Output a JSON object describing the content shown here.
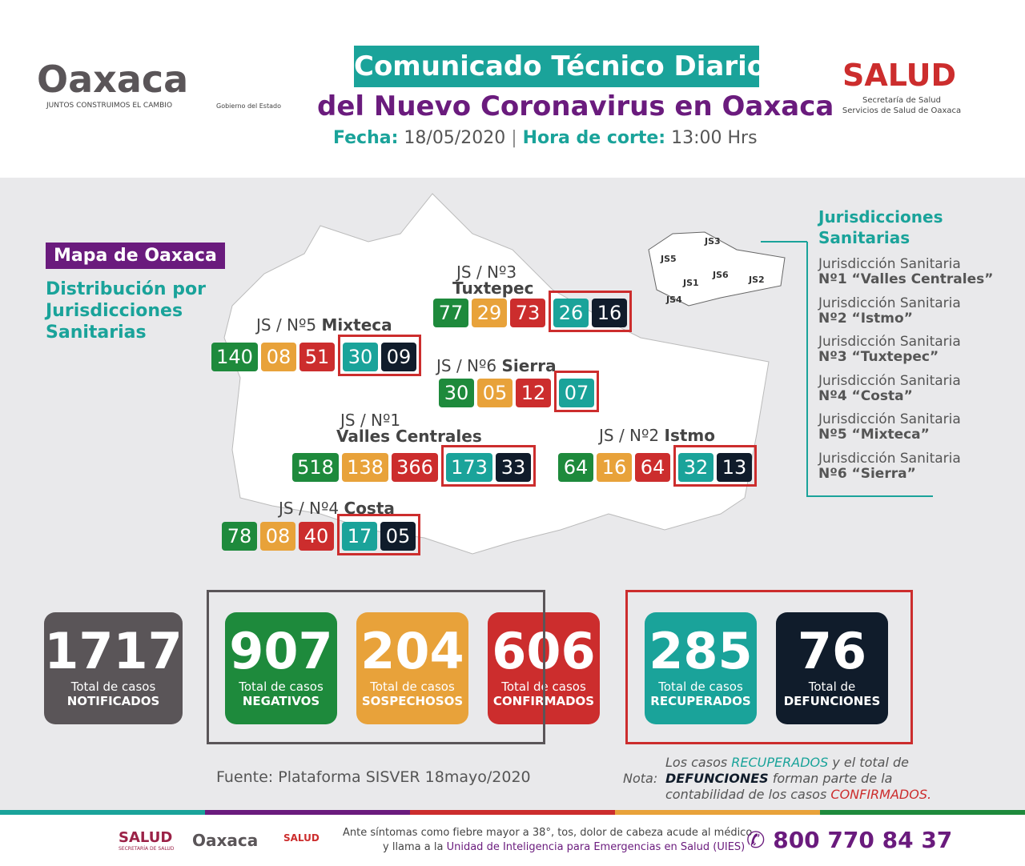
{
  "header": {
    "logo": "Oaxaca",
    "tagline": "JUNTOS CONSTRUIMOS EL CAMBIO",
    "gobierno": "Gobierno del Estado",
    "title_line1": "Comunicado Técnico Diario",
    "title_line2": "del Nuevo Coronavirus en Oaxaca",
    "fecha_label": "Fecha:",
    "fecha": "18/05/2020",
    "hora_label": "Hora de corte:",
    "hora": "13:00 Hrs",
    "salud": "SALUD",
    "salud_sub1": "Secretaría de Salud",
    "salud_sub2": "Servicios de Salud de Oaxaca"
  },
  "map": {
    "badge": "Mapa de Oaxaca",
    "subtitle": "Distribución por Jurisdicciones Sanitarias",
    "jurisdictions": [
      {
        "prefix": "JS / Nº3",
        "name": "Tuxtepec",
        "values": [
          "77",
          "29",
          "73",
          "26",
          "16"
        ]
      },
      {
        "prefix": "JS / Nº5",
        "name": "Mixteca",
        "values": [
          "140",
          "08",
          "51",
          "30",
          "09"
        ]
      },
      {
        "prefix": "JS / Nº6",
        "name": "Sierra",
        "values": [
          "30",
          "05",
          "12",
          "07"
        ]
      },
      {
        "prefix": "JS / Nº1",
        "name": "Valles Centrales",
        "values": [
          "518",
          "138",
          "366",
          "173",
          "33"
        ]
      },
      {
        "prefix": "JS / Nº2",
        "name": "Istmo",
        "values": [
          "64",
          "16",
          "64",
          "32",
          "13"
        ]
      },
      {
        "prefix": "JS / Nº4",
        "name": "Costa",
        "values": [
          "78",
          "08",
          "40",
          "17",
          "05"
        ]
      }
    ],
    "mini_labels": [
      "JS3",
      "JS5",
      "JS6",
      "JS1",
      "JS2",
      "JS4"
    ]
  },
  "legend": {
    "title": "Jurisdicciones Sanitarias",
    "items": [
      {
        "line1": "Jurisdicción Sanitaria",
        "line2": "Nº1 “Valles Centrales”"
      },
      {
        "line1": "Jurisdicción Sanitaria",
        "line2": "Nº2 “Istmo”"
      },
      {
        "line1": "Jurisdicción Sanitaria",
        "line2": "Nº3 “Tuxtepec”"
      },
      {
        "line1": "Jurisdicción Sanitaria",
        "line2": "Nº4 “Costa”"
      },
      {
        "line1": "Jurisdicción Sanitaria",
        "line2": "Nº5 “Mixteca”"
      },
      {
        "line1": "Jurisdicción Sanitaria",
        "line2": "Nº6 “Sierra”"
      }
    ]
  },
  "totals": [
    {
      "number": "1717",
      "line1": "Total de casos",
      "line2": "NOTIFICADOS"
    },
    {
      "number": "907",
      "line1": "Total de casos",
      "line2": "NEGATIVOS"
    },
    {
      "number": "204",
      "line1": "Total de casos",
      "line2": "SOSPECHOSOS"
    },
    {
      "number": "606",
      "line1": "Total de casos",
      "line2": "CONFIRMADOS"
    },
    {
      "number": "285",
      "line1": "Total de casos",
      "line2": "RECUPERADOS"
    },
    {
      "number": "76",
      "line1": "Total de",
      "line2": "DEFUNCIONES"
    }
  ],
  "source": "Fuente: Plataforma SISVER 18mayo/2020",
  "note": {
    "label": "Nota:",
    "parts": [
      "Los casos ",
      "RECUPERADOS",
      " y el total de ",
      "DEFUNCIONES",
      " forman parte de la contabilidad de los casos ",
      "CONFIRMADOS."
    ]
  },
  "footer": {
    "salud": "SALUD",
    "salud_sub": "SECRETARÍA DE SALUD",
    "oaxaca": "Oaxaca",
    "salud2": "SALUD",
    "line1": "Ante síntomas como fiebre mayor a 38°, tos, dolor de cabeza acude al médico",
    "line2_pre": "y llama a la ",
    "line2_link": "Unidad de Inteligencia para Emergencias en Salud (UIES)",
    "phone": "800 770 84 37"
  }
}
